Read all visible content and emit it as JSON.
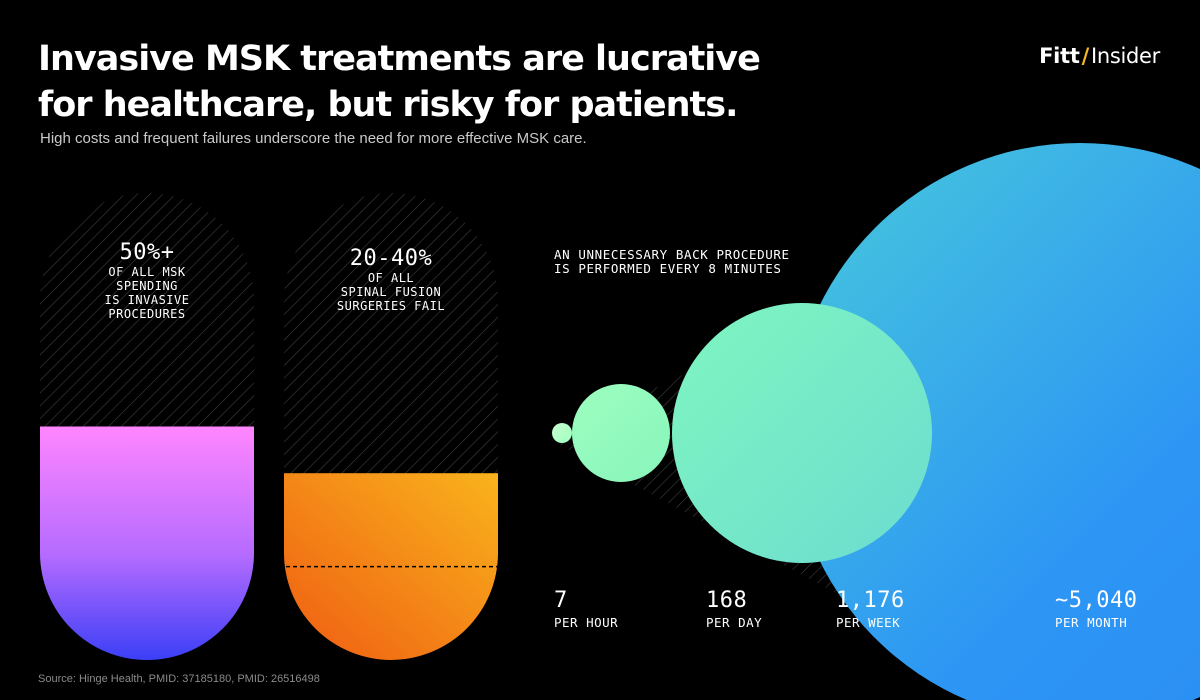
{
  "header": {
    "title_line1": "Invasive MSK treatments are lucrative",
    "title_line2": "for healthcare, but risky for patients.",
    "subtitle": "High costs and frequent failures underscore the need for more effective MSK care.",
    "brand_left": "Fitt",
    "brand_slash": "/",
    "brand_right": "Insider"
  },
  "pills": [
    {
      "value": "50%+",
      "label": "OF ALL MSK\nSPENDING\nIS INVASIVE\nPROCEDURES"
    },
    {
      "value": "20-40%",
      "label": "OF ALL\nSPINAL FUSION\nSURGERIES FAIL"
    }
  ],
  "bubbles": {
    "title": "AN UNNECESSARY BACK PROCEDURE\nIS PERFORMED EVERY 8 MINUTES",
    "stats": [
      {
        "value": "7",
        "unit": "PER HOUR"
      },
      {
        "value": "168",
        "unit": "PER DAY"
      },
      {
        "value": "1,176",
        "unit": "PER WEEK"
      },
      {
        "value": "~5,040",
        "unit": "PER MONTH"
      }
    ]
  },
  "source": "Source: Hinge Health, PMID: 37185180, PMID: 26516498",
  "colors": {
    "background": "#000000",
    "pill1_top": "#ff86ff",
    "pill1_bottom": "#3b3ff6",
    "pill2_top": "#f9b31c",
    "pill2_bottom": "#ef5c12",
    "bubble_green": "#a8ffbe",
    "bubble_teal": "#73e3cd",
    "bubble_blue": "#2d96f4",
    "brand_accent": "#f4b81f"
  },
  "chart_data": [
    {
      "type": "bar",
      "categories": [
        "OF ALL MSK SPENDING IS INVASIVE PROCEDURES",
        "OF ALL SPINAL FUSION SURGERIES FAIL"
      ],
      "values": [
        50,
        40
      ],
      "range_low": [
        null,
        20
      ],
      "labels": [
        "50%+",
        "20-40%"
      ],
      "ylim": [
        0,
        100
      ]
    },
    {
      "type": "scatter",
      "title": "AN UNNECESSARY BACK PROCEDURE IS PERFORMED EVERY 8 MINUTES",
      "categories": [
        "PER HOUR",
        "PER DAY",
        "PER WEEK",
        "PER MONTH"
      ],
      "values": [
        7,
        168,
        1176,
        5040
      ],
      "labels": [
        "7",
        "168",
        "1,176",
        "~5,040"
      ]
    }
  ]
}
